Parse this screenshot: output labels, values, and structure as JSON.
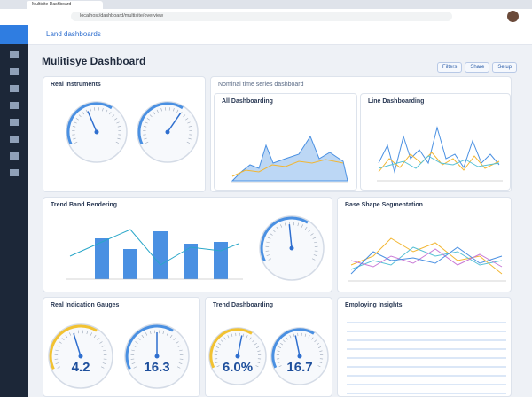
{
  "browser": {
    "tab": "Multisite Dashboard",
    "url": "localhost/dashboard/multisite/overview"
  },
  "header": {
    "app": "Land dashboards",
    "title": "Mulitisye Dashboard",
    "buttons": [
      "Filters",
      "Share",
      "Setup"
    ]
  },
  "panels": [
    {
      "title": "Real Instruments"
    },
    {
      "title": "Nominal time series dashboard"
    },
    {
      "title": "All Dashboarding"
    },
    {
      "title": "Line Dashboarding"
    },
    {
      "title": "Trend Band Rendering"
    },
    {
      "title": "Base Shape Segmentation"
    },
    {
      "title": "Real Indication Gauges"
    },
    {
      "title": "Trend Dashboarding"
    },
    {
      "title": "Employing Insights"
    }
  ],
  "gauges": [
    "4.2",
    "16.3",
    "6.0%",
    "16.7"
  ]
}
